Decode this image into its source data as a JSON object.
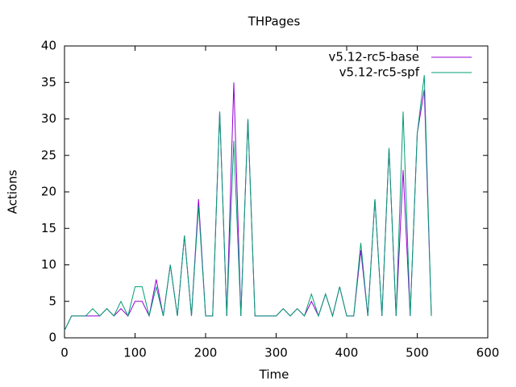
{
  "chart_data": {
    "type": "line",
    "title": "THPages",
    "xlabel": "Time",
    "ylabel": "Actions",
    "x": [
      0,
      10,
      20,
      30,
      40,
      50,
      60,
      70,
      80,
      90,
      100,
      110,
      120,
      130,
      140,
      150,
      160,
      170,
      180,
      190,
      200,
      210,
      220,
      230,
      240,
      250,
      260,
      270,
      280,
      290,
      300,
      310,
      320,
      330,
      340,
      350,
      360,
      370,
      380,
      390,
      400,
      410,
      420,
      430,
      440,
      450,
      460,
      470,
      480,
      490,
      500,
      510,
      520
    ],
    "series": [
      {
        "name": "v5.12-rc5-base",
        "color": "#9400d3",
        "values": [
          1,
          3,
          3,
          3,
          3,
          3,
          4,
          3,
          4,
          3,
          5,
          5,
          3,
          8,
          3,
          10,
          3,
          14,
          3,
          19,
          3,
          3,
          31,
          3,
          35,
          3,
          30,
          3,
          3,
          3,
          3,
          4,
          3,
          4,
          3,
          5,
          3,
          6,
          3,
          7,
          3,
          3,
          12,
          3,
          19,
          3,
          26,
          3,
          23,
          3,
          28,
          34,
          3
        ]
      },
      {
        "name": "v5.12-rc5-spf",
        "color": "#009e73",
        "values": [
          1,
          3,
          3,
          3,
          4,
          3,
          4,
          3,
          5,
          3,
          7,
          7,
          3,
          7,
          3,
          10,
          3,
          14,
          3,
          18,
          3,
          3,
          31,
          3,
          27,
          3,
          30,
          3,
          3,
          3,
          3,
          4,
          3,
          4,
          3,
          6,
          3,
          6,
          3,
          7,
          3,
          3,
          13,
          3,
          19,
          3,
          26,
          3,
          31,
          3,
          28,
          36,
          3
        ]
      }
    ],
    "xlim": [
      0,
      600
    ],
    "xticks": [
      0,
      100,
      200,
      300,
      400,
      500,
      600
    ],
    "ylim": [
      0,
      40
    ],
    "yticks": [
      0,
      5,
      10,
      15,
      20,
      25,
      30,
      35,
      40
    ],
    "legend": "top-right"
  }
}
